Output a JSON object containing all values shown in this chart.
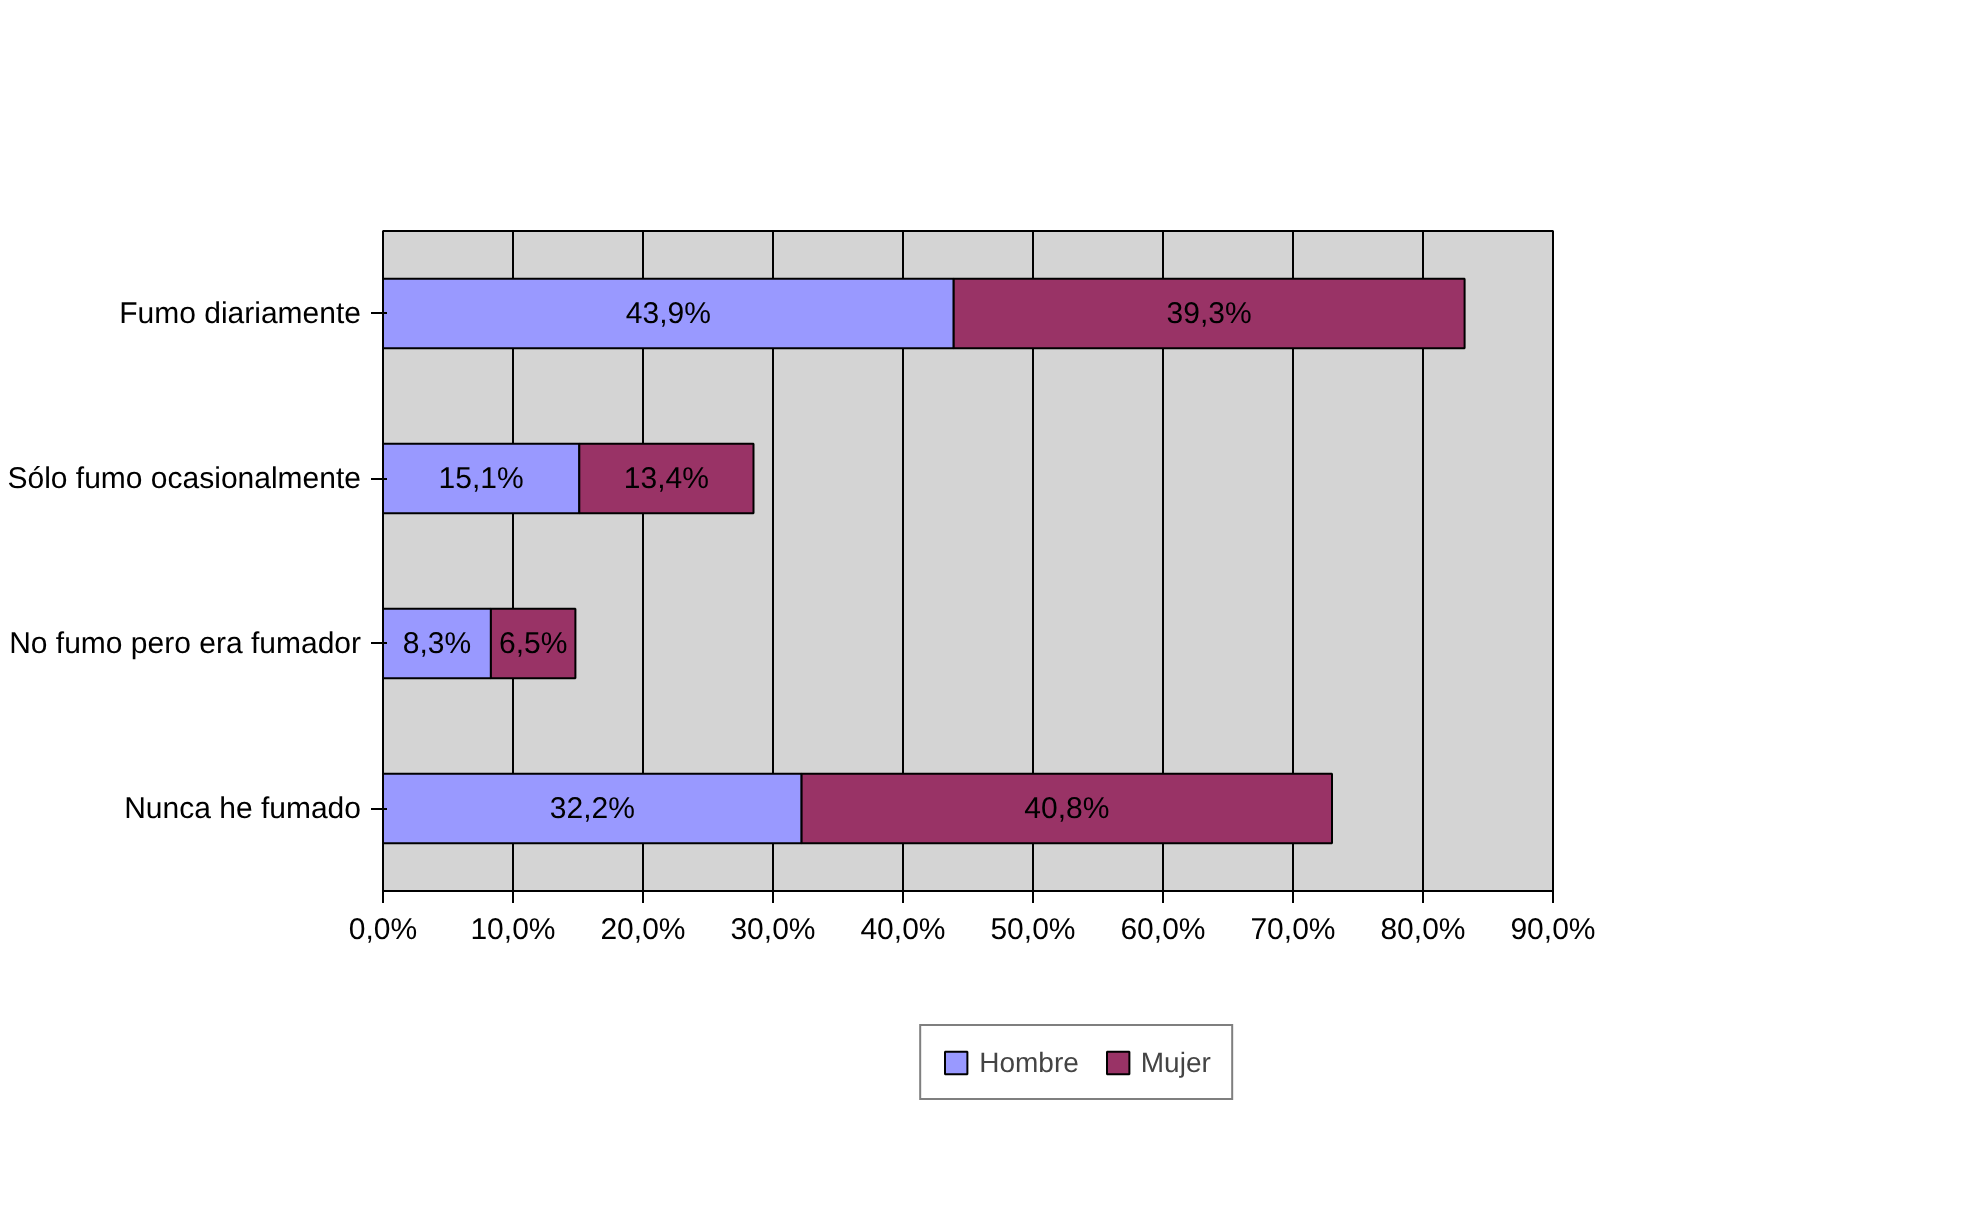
{
  "chart_data": {
    "type": "bar",
    "orientation": "horizontal",
    "stacked": true,
    "categories": [
      "Fumo diariamente",
      "Sólo fumo ocasionalmente",
      "No fumo pero era fumador",
      "Nunca he fumado"
    ],
    "series": [
      {
        "name": "Hombre",
        "color": "#9999ff",
        "values": [
          43.9,
          15.1,
          8.3,
          32.2
        ],
        "value_labels": [
          "43,9%",
          "15,1%",
          "8,3%",
          "32,2%"
        ]
      },
      {
        "name": "Mujer",
        "color": "#993366",
        "values": [
          39.3,
          13.4,
          6.5,
          40.8
        ],
        "value_labels": [
          "39,3%",
          "13,4%",
          "6,5%",
          "40,8%"
        ]
      }
    ],
    "xlim": [
      0,
      90
    ],
    "xticks": [
      {
        "value": 0,
        "label": "0,0%"
      },
      {
        "value": 10,
        "label": "10,0%"
      },
      {
        "value": 20,
        "label": "20,0%"
      },
      {
        "value": 30,
        "label": "30,0%"
      },
      {
        "value": 40,
        "label": "40,0%"
      },
      {
        "value": 50,
        "label": "50,0%"
      },
      {
        "value": 60,
        "label": "60,0%"
      },
      {
        "value": 70,
        "label": "70,0%"
      },
      {
        "value": 80,
        "label": "80,0%"
      },
      {
        "value": 90,
        "label": "90,0%"
      }
    ],
    "grid": "x",
    "legend": "bottom"
  }
}
